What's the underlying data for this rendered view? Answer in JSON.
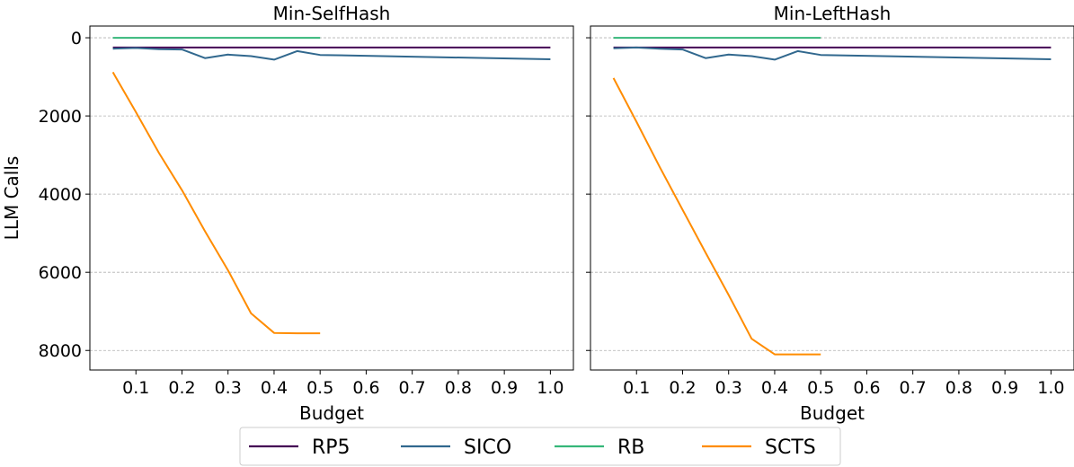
{
  "chart_data": [
    {
      "type": "line",
      "title": "Min-SelfHash",
      "xlabel": "Budget",
      "ylabel": "LLM Calls",
      "x_ticks": [
        "0.1",
        "0.2",
        "0.3",
        "0.4",
        "0.5",
        "0.6",
        "0.7",
        "0.8",
        "0.9",
        "1.0"
      ],
      "y_ticks": [
        "0",
        "2000",
        "4000",
        "6000",
        "8000"
      ],
      "xlim": [
        0.0,
        1.05
      ],
      "ylim": [
        8500,
        -300
      ],
      "y_inverted": true,
      "grid": "horizontal dashed",
      "series": [
        {
          "name": "RP5",
          "color": "#440154",
          "x": [
            0.05,
            1.0
          ],
          "y": [
            250,
            250
          ]
        },
        {
          "name": "SICO",
          "color": "#31688e",
          "x": [
            0.05,
            0.1,
            0.15,
            0.2,
            0.25,
            0.3,
            0.35,
            0.4,
            0.45,
            0.5,
            1.0
          ],
          "y": [
            280,
            260,
            290,
            300,
            520,
            430,
            470,
            560,
            340,
            440,
            550
          ]
        },
        {
          "name": "RB",
          "color": "#35b779",
          "x": [
            0.05,
            0.5
          ],
          "y": [
            0,
            0
          ]
        },
        {
          "name": "SCTS",
          "color": "#ff8c00",
          "x": [
            0.05,
            0.1,
            0.15,
            0.2,
            0.25,
            0.3,
            0.35,
            0.4,
            0.45,
            0.5
          ],
          "y": [
            880,
            1900,
            2950,
            3900,
            4950,
            5950,
            7050,
            7550,
            7560,
            7560
          ]
        }
      ]
    },
    {
      "type": "line",
      "title": "Min-LeftHash",
      "xlabel": "Budget",
      "ylabel": "",
      "x_ticks": [
        "0.1",
        "0.2",
        "0.3",
        "0.4",
        "0.5",
        "0.6",
        "0.7",
        "0.8",
        "0.9",
        "1.0"
      ],
      "y_ticks": [
        "0",
        "2000",
        "4000",
        "6000",
        "8000"
      ],
      "xlim": [
        0.0,
        1.05
      ],
      "ylim": [
        8500,
        -300
      ],
      "y_inverted": true,
      "grid": "horizontal dashed",
      "series": [
        {
          "name": "RP5",
          "color": "#440154",
          "x": [
            0.05,
            1.0
          ],
          "y": [
            250,
            250
          ]
        },
        {
          "name": "SICO",
          "color": "#31688e",
          "x": [
            0.05,
            0.1,
            0.15,
            0.2,
            0.25,
            0.3,
            0.35,
            0.4,
            0.45,
            0.5,
            1.0
          ],
          "y": [
            270,
            250,
            280,
            300,
            520,
            430,
            470,
            560,
            340,
            440,
            550
          ]
        },
        {
          "name": "RB",
          "color": "#35b779",
          "x": [
            0.05,
            0.5
          ],
          "y": [
            0,
            0
          ]
        },
        {
          "name": "SCTS",
          "color": "#ff8c00",
          "x": [
            0.05,
            0.1,
            0.15,
            0.2,
            0.25,
            0.3,
            0.35,
            0.4,
            0.45,
            0.5
          ],
          "y": [
            1030,
            2150,
            3300,
            4400,
            5500,
            6580,
            7700,
            8100,
            8100,
            8100
          ]
        }
      ]
    }
  ],
  "legend": {
    "placement": "bottom-center",
    "items": [
      {
        "label": "RP5",
        "color": "#440154"
      },
      {
        "label": "SICO",
        "color": "#31688e"
      },
      {
        "label": "RB",
        "color": "#35b779"
      },
      {
        "label": "SCTS",
        "color": "#ff8c00"
      }
    ]
  }
}
